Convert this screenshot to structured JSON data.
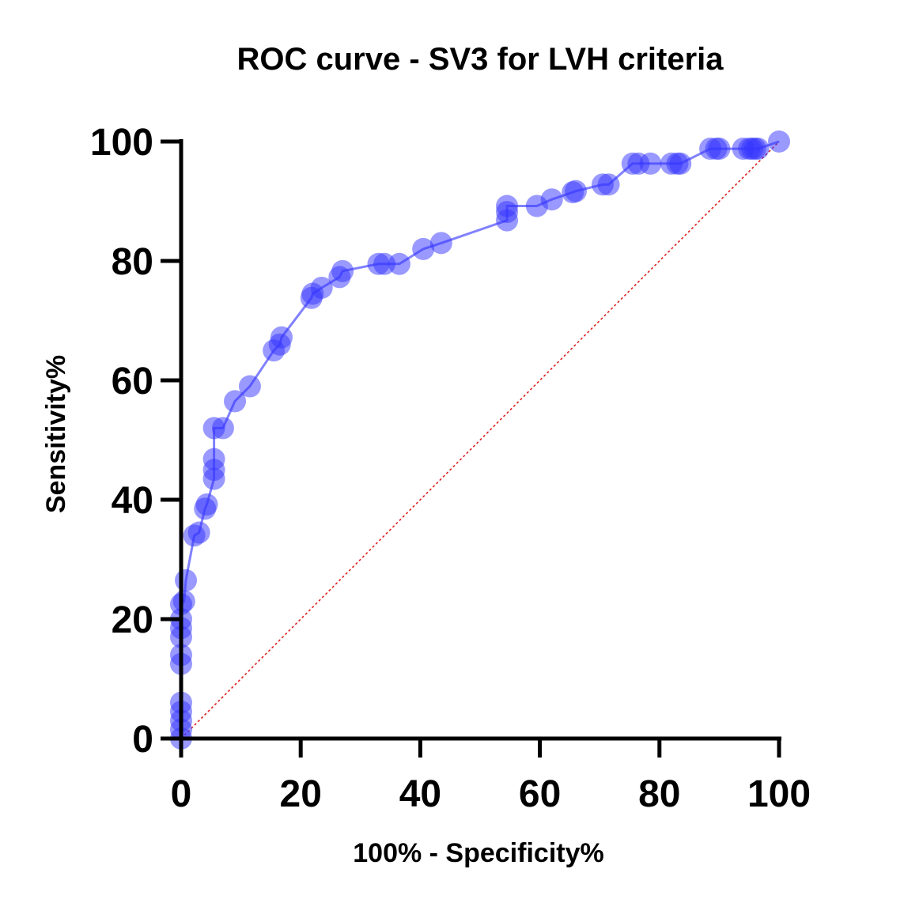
{
  "chart_data": {
    "type": "line",
    "title": "ROC curve - SV3 for LVH criteria",
    "xlabel": "100% - Specificity%",
    "ylabel": "Sensitivity%",
    "xlim": [
      0,
      100
    ],
    "ylim": [
      0,
      100
    ],
    "xticks": [
      0,
      20,
      40,
      60,
      80,
      100
    ],
    "yticks": [
      0,
      20,
      40,
      60,
      80,
      100
    ],
    "grid": false,
    "colors": {
      "curve": "#1a1aff",
      "marker": "#3333ff",
      "reference": "#e02020"
    },
    "series": [
      {
        "values": [
          [
            0,
            0
          ],
          [
            0,
            1.5
          ],
          [
            0,
            3
          ],
          [
            0,
            4.5
          ],
          [
            0,
            6
          ],
          [
            0,
            12.5
          ],
          [
            0,
            14
          ],
          [
            0,
            17
          ],
          [
            0,
            18.5
          ],
          [
            0,
            20
          ],
          [
            0,
            22.5
          ],
          [
            0.5,
            23
          ],
          [
            0.8,
            26.5
          ],
          [
            2.2,
            34
          ],
          [
            3,
            34.5
          ],
          [
            4,
            38.5
          ],
          [
            4.3,
            39.2
          ],
          [
            5.5,
            43.5
          ],
          [
            5.5,
            45
          ],
          [
            5.5,
            46.8
          ],
          [
            5.5,
            52
          ],
          [
            7,
            52
          ],
          [
            9,
            56.5
          ],
          [
            11.5,
            59
          ],
          [
            15.5,
            65
          ],
          [
            16.5,
            66
          ],
          [
            16.8,
            67.2
          ],
          [
            21.8,
            73.8
          ],
          [
            22,
            74.5
          ],
          [
            23.5,
            75.5
          ],
          [
            26.5,
            77.3
          ],
          [
            27,
            78.3
          ],
          [
            33,
            79.5
          ],
          [
            34,
            79.5
          ],
          [
            36.5,
            79.5
          ],
          [
            40.5,
            82
          ],
          [
            43.5,
            83
          ],
          [
            54.5,
            86.8
          ],
          [
            54.5,
            88.2
          ],
          [
            54.5,
            89.2
          ],
          [
            59.5,
            89.2
          ],
          [
            62,
            90.3
          ],
          [
            65.5,
            91.5
          ],
          [
            66,
            91.7
          ],
          [
            70.5,
            92.8
          ],
          [
            71.5,
            92.8
          ],
          [
            75.5,
            96.3
          ],
          [
            76.5,
            96.3
          ],
          [
            78.5,
            96.3
          ],
          [
            82,
            96.3
          ],
          [
            83,
            96.3
          ],
          [
            83.5,
            96.3
          ],
          [
            88.5,
            98.8
          ],
          [
            89.5,
            98.8
          ],
          [
            90,
            98.8
          ],
          [
            94,
            98.8
          ],
          [
            95,
            98.8
          ],
          [
            95.5,
            98.8
          ],
          [
            96,
            98.8
          ],
          [
            96.5,
            98.8
          ],
          [
            100,
            100
          ]
        ]
      },
      {
        "type": "reference",
        "values": [
          [
            0,
            0
          ],
          [
            100,
            100
          ]
        ]
      }
    ]
  }
}
